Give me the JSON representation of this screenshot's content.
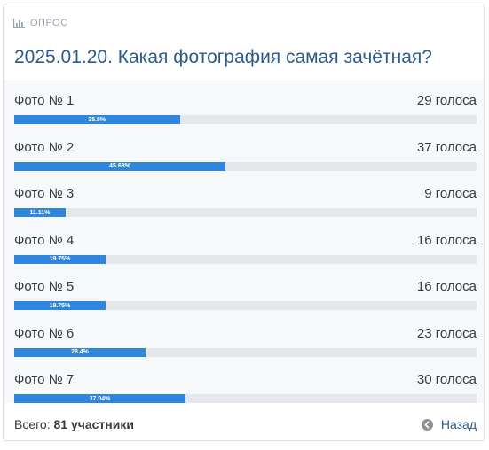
{
  "poll": {
    "header_label": "ОПРОС",
    "title": "2025.01.20. Какая фотография самая зачётная?",
    "options": [
      {
        "name": "Фото № 1",
        "votes": "29 голоса",
        "percent_label": "35.8%",
        "percent": 35.8
      },
      {
        "name": "Фото № 2",
        "votes": "37 голоса",
        "percent_label": "45.68%",
        "percent": 45.68
      },
      {
        "name": "Фото № 3",
        "votes": "9 голоса",
        "percent_label": "11.11%",
        "percent": 11.11
      },
      {
        "name": "Фото № 4",
        "votes": "16 голоса",
        "percent_label": "19.75%",
        "percent": 19.75
      },
      {
        "name": "Фото № 5",
        "votes": "16 голоса",
        "percent_label": "19.75%",
        "percent": 19.75
      },
      {
        "name": "Фото № 6",
        "votes": "23 голоса",
        "percent_label": "28.4%",
        "percent": 28.4
      },
      {
        "name": "Фото № 7",
        "votes": "30 голоса",
        "percent_label": "37.04%",
        "percent": 37.04
      }
    ],
    "footer": {
      "total_label": "Всего:",
      "total_value": "81 участники",
      "back_label": "Назад"
    }
  },
  "icons": {
    "header": "bar-chart-icon",
    "back": "circle-arrow-left-icon"
  },
  "colors": {
    "bar_fill": "#2f86de",
    "bar_track": "#e4e7eb",
    "title": "#2c5b8a",
    "options_background": "#f7f8fa"
  }
}
